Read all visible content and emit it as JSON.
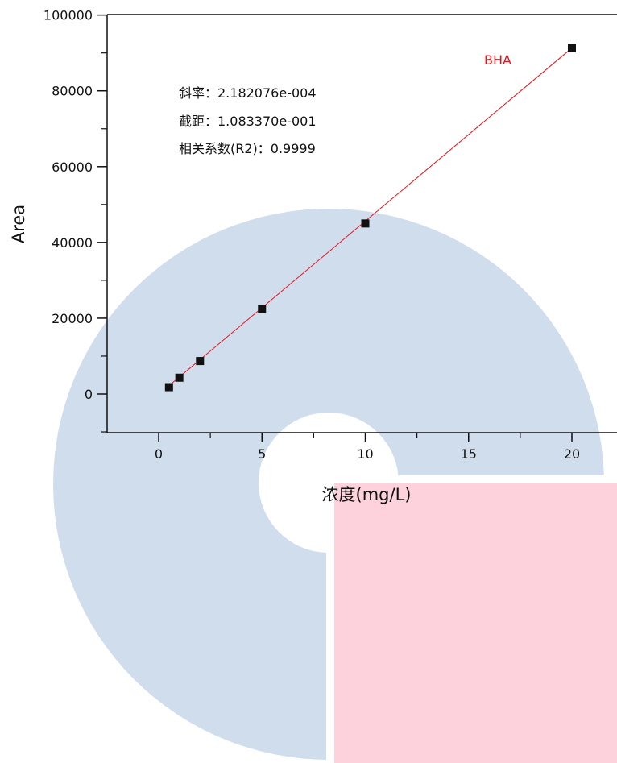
{
  "chart_data": {
    "type": "scatter",
    "title": "",
    "xlabel": "浓度(mg/L)",
    "ylabel": "Area",
    "xlim": [
      -2.6,
      22
    ],
    "ylim": [
      -10000,
      100000
    ],
    "xticks": [
      0,
      5,
      10,
      15,
      20
    ],
    "yticks": [
      0,
      20000,
      40000,
      60000,
      80000,
      100000
    ],
    "grid": false,
    "series": [
      {
        "name": "BHA",
        "color": "#e8141c",
        "points": [
          {
            "x": 0.5,
            "y": 1800
          },
          {
            "x": 1,
            "y": 4300
          },
          {
            "x": 2,
            "y": 8700
          },
          {
            "x": 5,
            "y": 22400
          },
          {
            "x": 10,
            "y": 45000
          },
          {
            "x": 20,
            "y": 91300
          }
        ],
        "fit_line": {
          "x": [
            0.5,
            20
          ],
          "y": [
            2200,
            91300
          ]
        }
      }
    ],
    "annotations": [
      "斜率：2.182076e-004",
      "截距：1.083370e-001",
      "相关系数(R2)：0.9999"
    ]
  },
  "watermark": {
    "ring_color": "#d0dded",
    "block_color": "#fdd2dc"
  }
}
